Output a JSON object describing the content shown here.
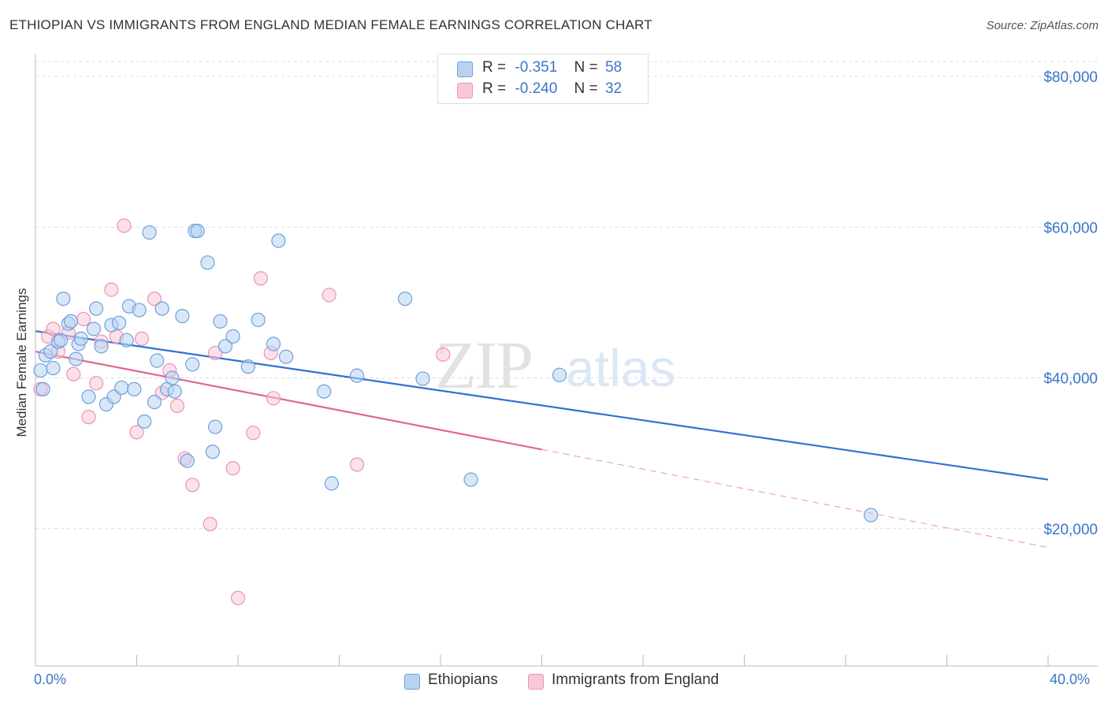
{
  "title": "ETHIOPIAN VS IMMIGRANTS FROM ENGLAND MEDIAN FEMALE EARNINGS CORRELATION CHART",
  "source": "Source: ZipAtlas.com",
  "watermark": "ZIPatlas",
  "legend_top": {
    "rows": [
      {
        "r_label": "R =",
        "r_value": "-0.351",
        "n_label": "N =",
        "n_value": "58"
      },
      {
        "r_label": "R =",
        "r_value": "-0.240",
        "n_label": "N =",
        "n_value": "32"
      }
    ]
  },
  "colors": {
    "ethiopians_fill": "#b8d3f2",
    "ethiopians_stroke": "#6fa0dc",
    "ethiopians_line": "#2f72cf",
    "england_fill": "#f8c8d8",
    "england_stroke": "#eb93b2",
    "england_line": "#e06690",
    "tick_text": "#3a76c9",
    "grid": "#dcdcdc"
  },
  "chart_data": {
    "type": "scatter",
    "title": "ETHIOPIAN VS IMMIGRANTS FROM ENGLAND MEDIAN FEMALE EARNINGS CORRELATION CHART",
    "xlabel": "",
    "ylabel": "Median Female Earnings",
    "xlim": [
      0,
      40
    ],
    "ylim": [
      0,
      82000
    ],
    "x_tick_labels": [
      "0.0%",
      "40.0%"
    ],
    "y_ticks": [
      20000,
      40000,
      60000,
      80000
    ],
    "y_tick_labels": [
      "$20,000",
      "$40,000",
      "$60,000",
      "$80,000"
    ],
    "grid": true,
    "legend_position": "bottom",
    "series": [
      {
        "name": "Ethiopians",
        "color": "#6fa0dc",
        "trend": {
          "x": [
            0,
            40
          ],
          "y": [
            46200,
            26500
          ]
        },
        "points": [
          [
            0.2,
            41000
          ],
          [
            0.4,
            43000
          ],
          [
            0.6,
            43500
          ],
          [
            0.7,
            41300
          ],
          [
            0.9,
            44800
          ],
          [
            1.1,
            50500
          ],
          [
            1.3,
            47200
          ],
          [
            1.4,
            47500
          ],
          [
            1.6,
            42500
          ],
          [
            1.7,
            44500
          ],
          [
            1.8,
            45200
          ],
          [
            2.1,
            37500
          ],
          [
            2.3,
            46500
          ],
          [
            2.4,
            49200
          ],
          [
            2.6,
            44200
          ],
          [
            2.8,
            36500
          ],
          [
            3.0,
            47000
          ],
          [
            3.1,
            37500
          ],
          [
            3.3,
            47300
          ],
          [
            3.4,
            38700
          ],
          [
            3.6,
            45000
          ],
          [
            3.7,
            49500
          ],
          [
            3.9,
            38500
          ],
          [
            4.1,
            49000
          ],
          [
            4.3,
            34200
          ],
          [
            4.5,
            59300
          ],
          [
            4.7,
            36800
          ],
          [
            4.8,
            42300
          ],
          [
            5.0,
            49200
          ],
          [
            5.2,
            38500
          ],
          [
            5.4,
            40000
          ],
          [
            5.5,
            38200
          ],
          [
            5.8,
            48200
          ],
          [
            6.0,
            29000
          ],
          [
            6.2,
            41800
          ],
          [
            6.3,
            59500
          ],
          [
            6.4,
            59500
          ],
          [
            6.8,
            55300
          ],
          [
            7.0,
            30200
          ],
          [
            7.1,
            33500
          ],
          [
            7.3,
            47500
          ],
          [
            7.5,
            44200
          ],
          [
            7.8,
            45500
          ],
          [
            8.4,
            41500
          ],
          [
            8.8,
            47700
          ],
          [
            9.4,
            44500
          ],
          [
            9.6,
            58200
          ],
          [
            9.9,
            42800
          ],
          [
            11.4,
            38200
          ],
          [
            11.7,
            26000
          ],
          [
            12.7,
            40300
          ],
          [
            14.6,
            50500
          ],
          [
            15.3,
            39900
          ],
          [
            17.2,
            26500
          ],
          [
            20.7,
            40400
          ],
          [
            33.0,
            21800
          ],
          [
            0.3,
            38500
          ],
          [
            1.0,
            45000
          ]
        ]
      },
      {
        "name": "Immigrants from England",
        "color": "#eb93b2",
        "trend": {
          "x": [
            0,
            20
          ],
          "y": [
            43500,
            30500
          ]
        },
        "trend_dashed": {
          "x": [
            20,
            40
          ],
          "y": [
            30500,
            17500
          ]
        },
        "points": [
          [
            0.2,
            38500
          ],
          [
            0.5,
            45500
          ],
          [
            0.7,
            46500
          ],
          [
            0.9,
            43500
          ],
          [
            1.3,
            46000
          ],
          [
            1.5,
            40500
          ],
          [
            1.9,
            47800
          ],
          [
            2.1,
            34800
          ],
          [
            2.4,
            39300
          ],
          [
            2.6,
            44800
          ],
          [
            3.0,
            51700
          ],
          [
            3.2,
            45500
          ],
          [
            3.5,
            60200
          ],
          [
            4.0,
            32800
          ],
          [
            4.2,
            45200
          ],
          [
            4.7,
            50500
          ],
          [
            5.0,
            38000
          ],
          [
            5.3,
            41000
          ],
          [
            5.6,
            36300
          ],
          [
            5.9,
            29300
          ],
          [
            6.2,
            25800
          ],
          [
            6.9,
            20600
          ],
          [
            7.1,
            43300
          ],
          [
            7.8,
            28000
          ],
          [
            8.0,
            10800
          ],
          [
            8.6,
            32700
          ],
          [
            8.9,
            53200
          ],
          [
            9.3,
            43300
          ],
          [
            9.4,
            37300
          ],
          [
            11.6,
            51000
          ],
          [
            12.7,
            28500
          ],
          [
            16.1,
            43100
          ]
        ]
      }
    ]
  },
  "bottom_legend": {
    "items": [
      "Ethiopians",
      "Immigrants from England"
    ]
  }
}
